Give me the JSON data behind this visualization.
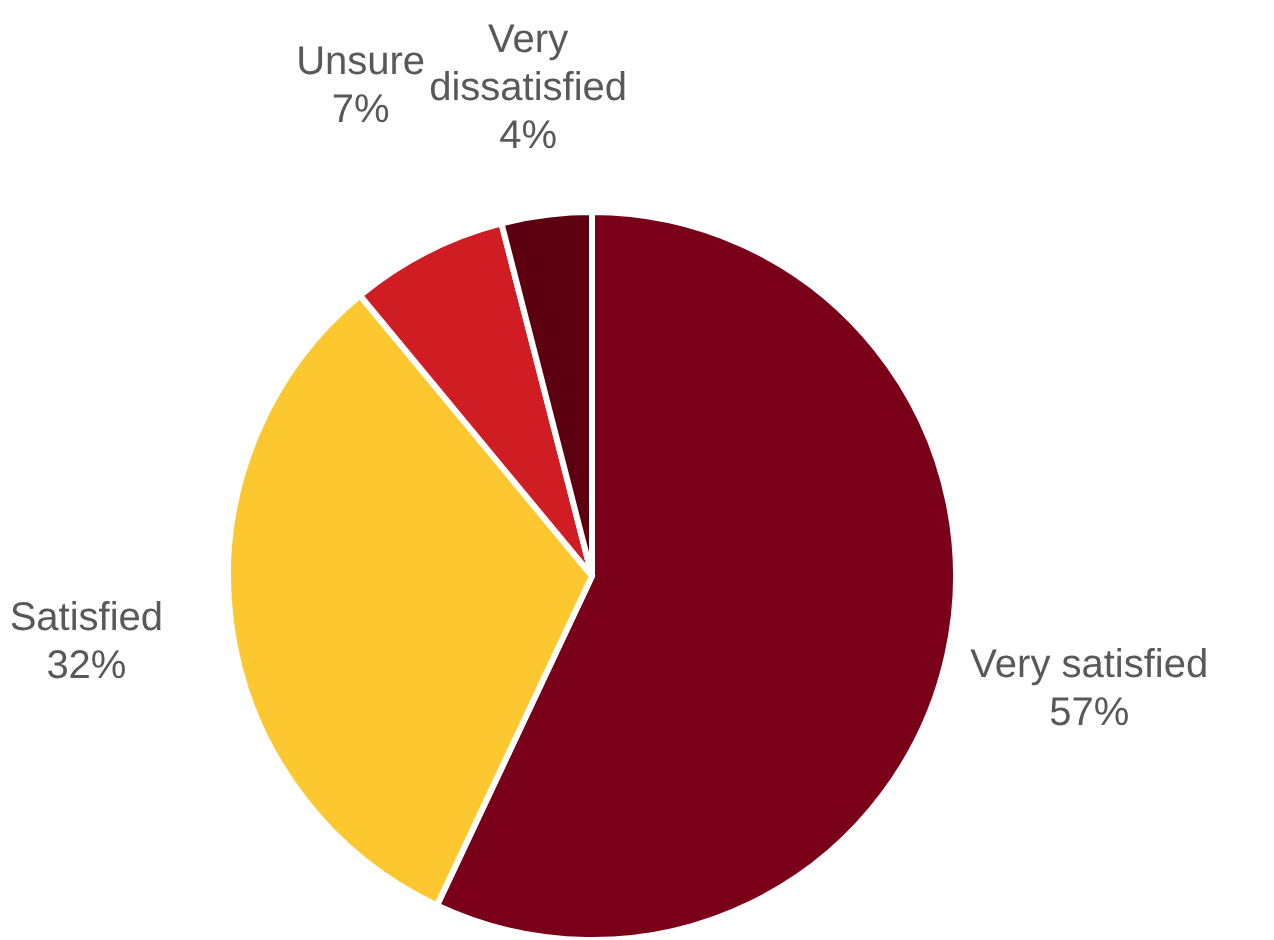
{
  "chart_data": {
    "type": "pie",
    "categories": [
      "Very satisfied",
      "Satisfied",
      "Unsure",
      "Very dissatisfied"
    ],
    "values": [
      57,
      32,
      7,
      4
    ],
    "colors": [
      "#7a0019",
      "#fdc82f",
      "#d01c23",
      "#5c0011"
    ],
    "value_labels": [
      "57%",
      "32%",
      "7%",
      "4%"
    ]
  }
}
